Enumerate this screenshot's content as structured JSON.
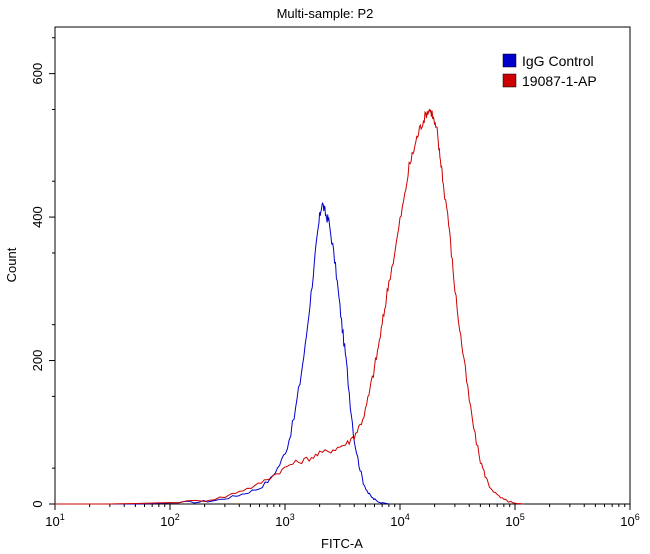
{
  "chart_data": {
    "type": "line",
    "title": "Multi-sample: P2",
    "xlabel": "FITC-A",
    "ylabel": "Count",
    "xscale": "log",
    "xlim": [
      10,
      1000000
    ],
    "ylim": [
      0,
      665
    ],
    "x_ticks": [
      {
        "base": "10",
        "exp": "1"
      },
      {
        "base": "10",
        "exp": "2"
      },
      {
        "base": "10",
        "exp": "3"
      },
      {
        "base": "10",
        "exp": "4"
      },
      {
        "base": "10",
        "exp": "5"
      },
      {
        "base": "10",
        "exp": "6"
      }
    ],
    "y_ticks": [
      "0",
      "200",
      "400",
      "600"
    ],
    "y_tick_values": [
      0,
      200,
      400,
      600
    ],
    "grid": false,
    "legend_position": "top-right",
    "colors": {
      "blue": "#0000cc",
      "red": "#cc0000"
    },
    "series": [
      {
        "name": "IgG Control",
        "color": "#0000cc",
        "x": [
          30,
          50,
          80,
          120,
          180,
          250,
          350,
          450,
          600,
          750,
          900,
          1050,
          1200,
          1350,
          1500,
          1650,
          1800,
          1900,
          2000,
          2100,
          2200,
          2300,
          2400,
          2600,
          2800,
          3000,
          3200,
          3400,
          3700,
          4000,
          4400,
          4800,
          5300,
          5800,
          6300,
          7000,
          8000
        ],
        "y": [
          0,
          0,
          1,
          2,
          3,
          5,
          10,
          15,
          22,
          35,
          55,
          80,
          120,
          170,
          220,
          280,
          335,
          370,
          400,
          420,
          410,
          400,
          395,
          360,
          320,
          275,
          235,
          200,
          140,
          90,
          55,
          30,
          15,
          8,
          4,
          2,
          0
        ]
      },
      {
        "name": "19087-1-AP",
        "color": "#cc0000",
        "x": [
          10,
          30,
          60,
          100,
          200,
          300,
          400,
          550,
          700,
          900,
          1100,
          1400,
          1700,
          2000,
          2500,
          3000,
          3500,
          4000,
          4500,
          5000,
          5500,
          6000,
          6500,
          7000,
          7500,
          8000,
          9000,
          10000,
          11000,
          12000,
          13000,
          14000,
          15000,
          16000,
          17000,
          18000,
          19000,
          20000,
          21000,
          22000,
          23000,
          24000,
          26000,
          28000,
          30000,
          33000,
          36000,
          40000,
          45000,
          50000,
          55000,
          60000,
          70000,
          80000,
          90000,
          100000,
          120000
        ],
        "y": [
          0,
          0,
          1,
          2,
          5,
          10,
          18,
          25,
          35,
          45,
          55,
          60,
          65,
          70,
          75,
          80,
          85,
          95,
          110,
          130,
          160,
          190,
          220,
          250,
          280,
          310,
          350,
          395,
          430,
          470,
          490,
          510,
          525,
          535,
          545,
          550,
          545,
          530,
          520,
          490,
          470,
          440,
          405,
          350,
          300,
          245,
          200,
          145,
          95,
          60,
          40,
          25,
          12,
          6,
          3,
          1,
          0
        ]
      }
    ]
  }
}
